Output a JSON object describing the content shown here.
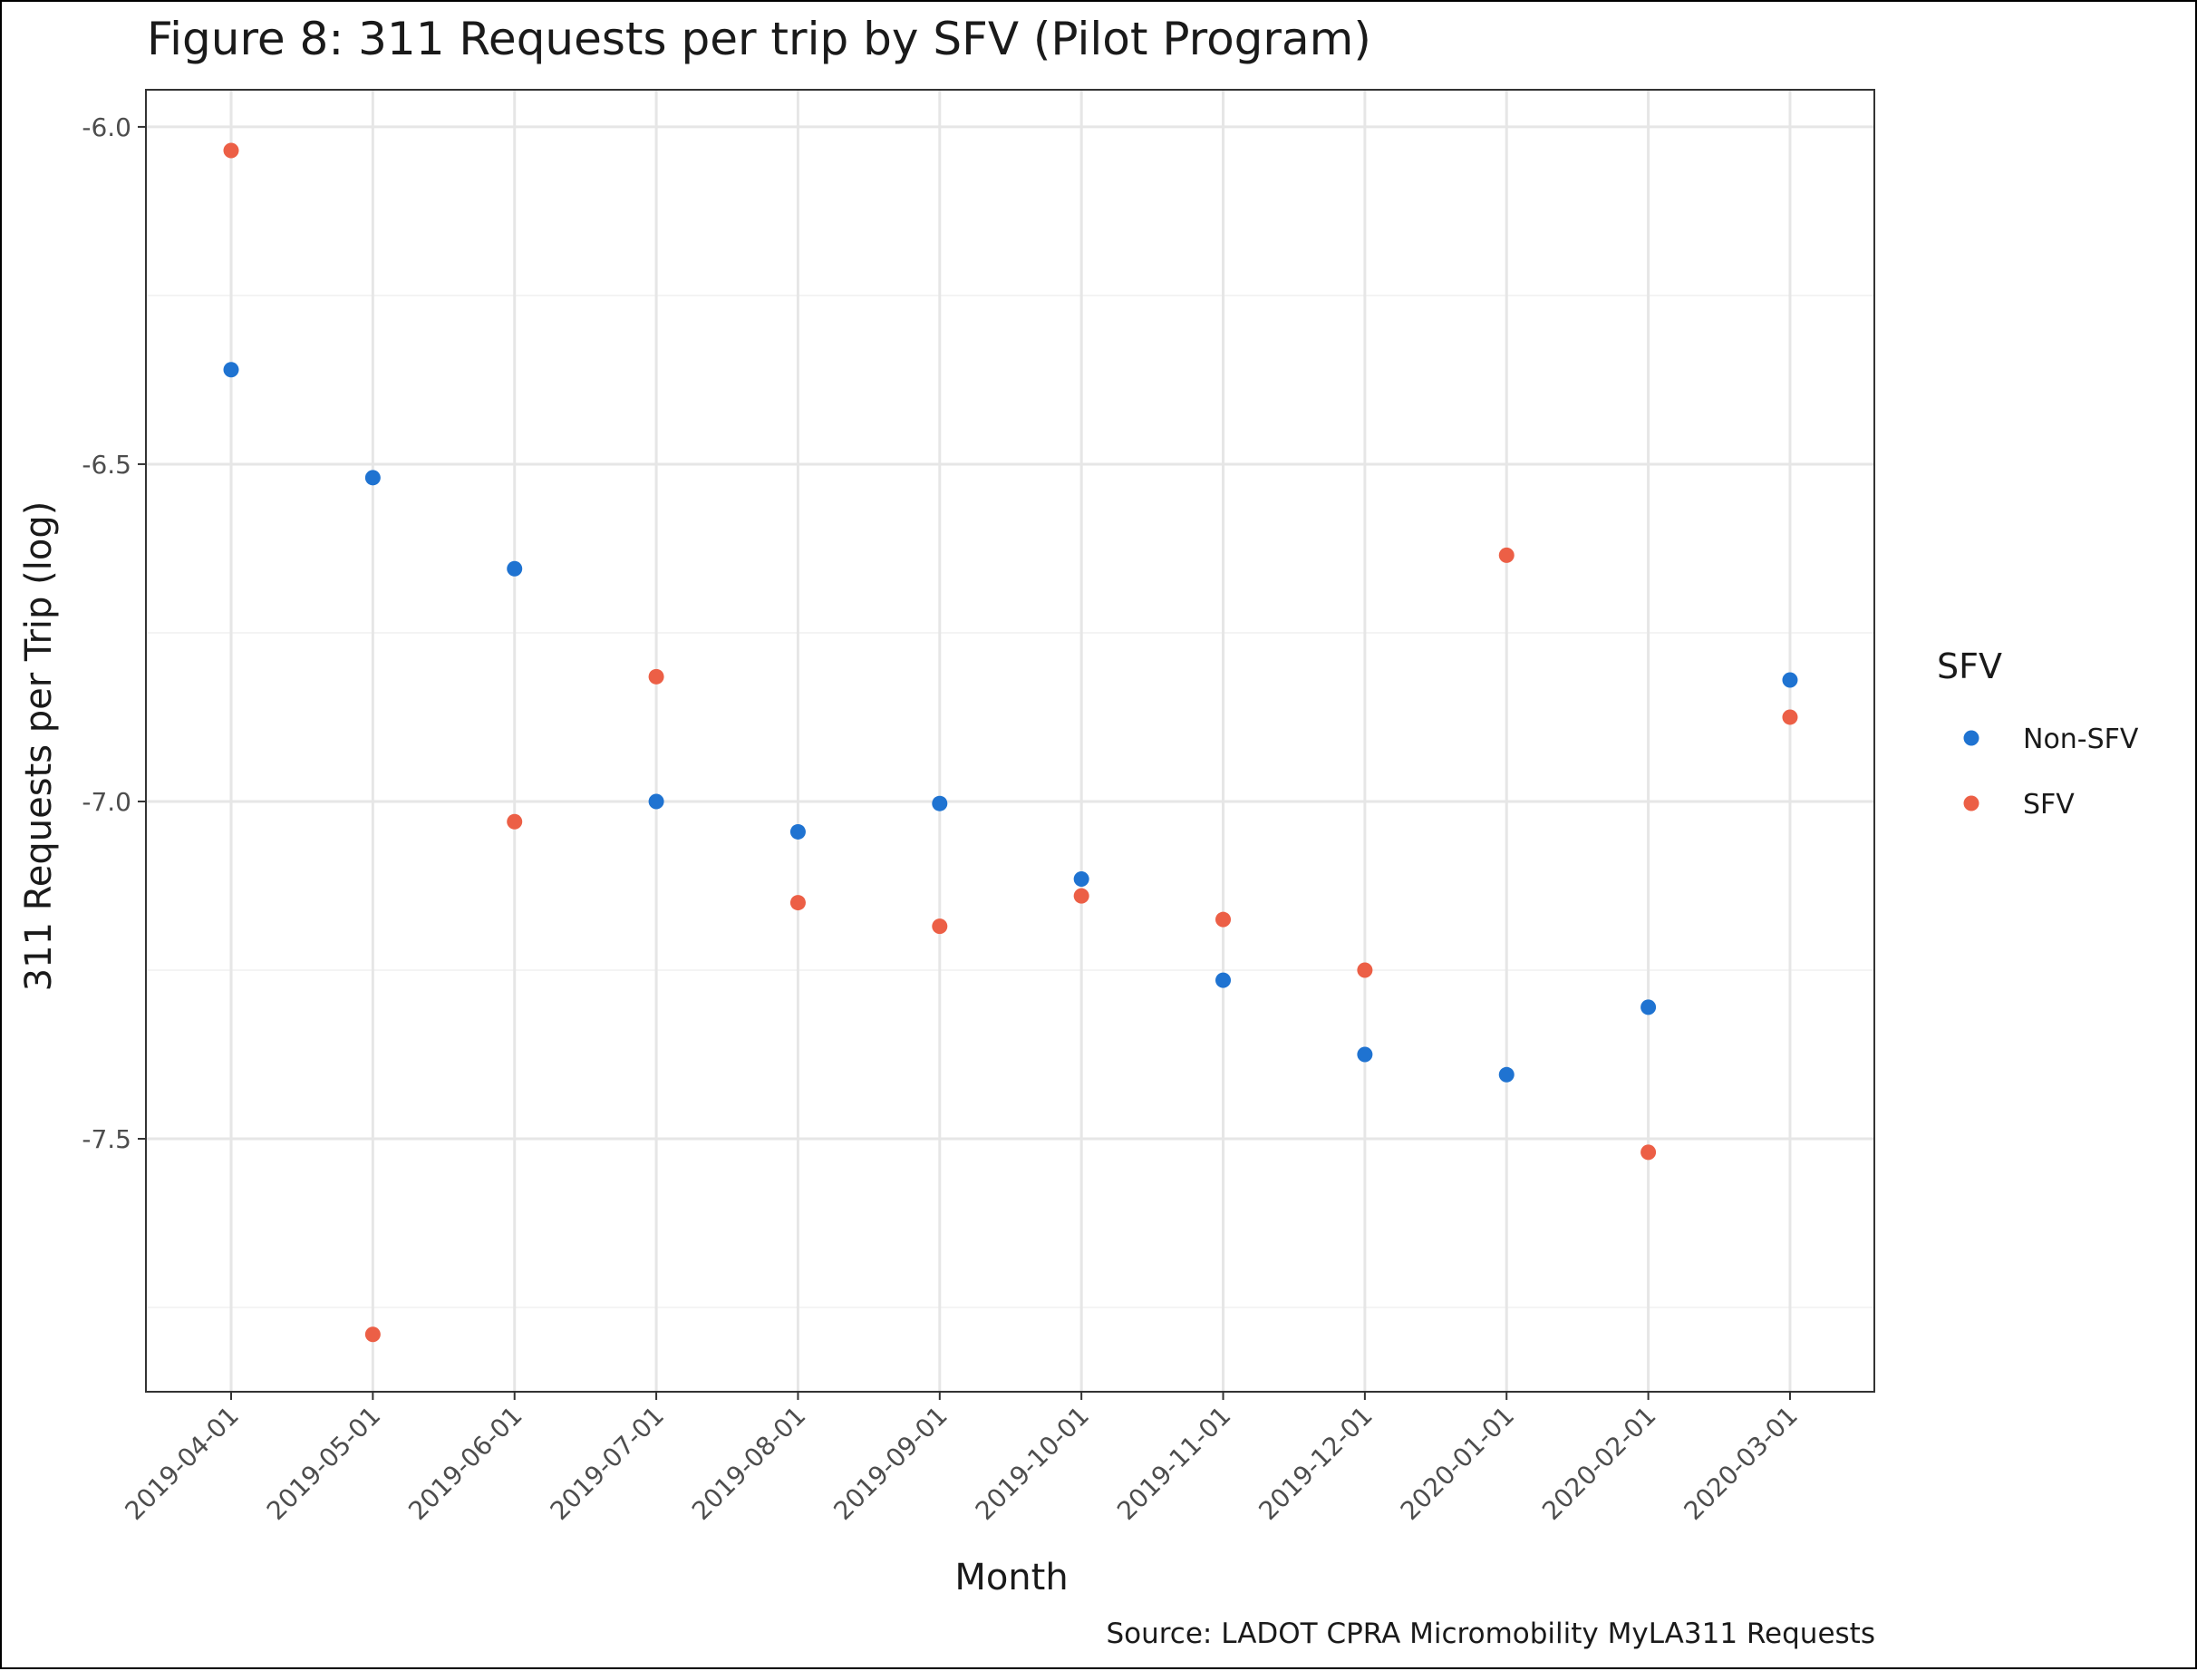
{
  "chart_data": {
    "type": "scatter",
    "title": "Figure 8: 311 Requests per trip by SFV (Pilot Program)",
    "xlabel": "Month",
    "ylabel": "311 Requests per Trip (log)",
    "caption": "Source: LADOT CPRA Micromobility MyLA311 Requests",
    "categories": [
      "2019-04-01",
      "2019-05-01",
      "2019-06-01",
      "2019-07-01",
      "2019-08-01",
      "2019-09-01",
      "2019-10-01",
      "2019-11-01",
      "2019-12-01",
      "2020-01-01",
      "2020-02-01",
      "2020-03-01"
    ],
    "ylim": [
      -7.875,
      -5.945
    ],
    "yticks": [
      -6.0,
      -6.5,
      -7.0,
      -7.5
    ],
    "ytick_labels": [
      "-6.0",
      "-6.5",
      "-7.0",
      "-7.5"
    ],
    "y_minor_ticks": [
      -6.25,
      -6.75,
      -7.25,
      -7.75
    ],
    "grid": true,
    "legend": {
      "title": "SFV",
      "position": "right"
    },
    "series": [
      {
        "name": "Non-SFV",
        "color": "#1f73d1",
        "values": [
          -6.36,
          -6.52,
          -6.655,
          -7.0,
          -7.045,
          -7.003,
          -7.115,
          -7.265,
          -7.375,
          -7.405,
          -7.305,
          -6.82
        ]
      },
      {
        "name": "SFV",
        "color": "#ec5f46",
        "values": [
          -6.035,
          -7.79,
          -7.03,
          -6.815,
          -7.15,
          -7.185,
          -7.14,
          -7.175,
          -7.25,
          -6.635,
          -7.52,
          -6.875
        ]
      }
    ]
  }
}
